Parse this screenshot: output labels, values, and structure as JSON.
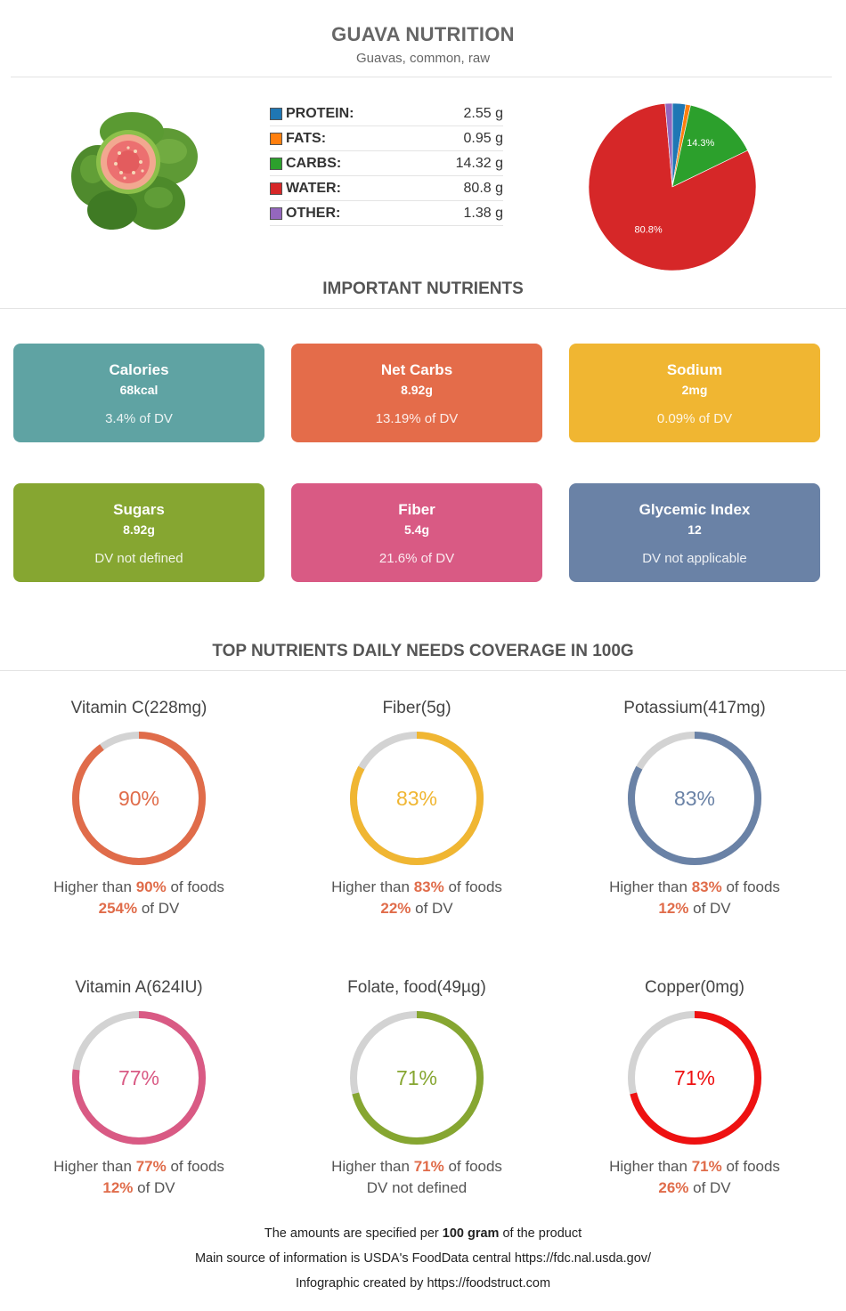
{
  "header": {
    "title": "GUAVA NUTRITION",
    "subtitle": "Guavas, common, raw"
  },
  "macros": [
    {
      "label": "PROTEIN:",
      "value": "2.55 g",
      "color": "#1f77b4"
    },
    {
      "label": "FATS:",
      "value": "0.95 g",
      "color": "#ff7f0e"
    },
    {
      "label": "CARBS:",
      "value": "14.32 g",
      "color": "#2ca02c"
    },
    {
      "label": "WATER:",
      "value": "80.8 g",
      "color": "#d62728"
    },
    {
      "label": "OTHER:",
      "value": "1.38 g",
      "color": "#9467bd"
    }
  ],
  "chart_data": {
    "type": "pie",
    "categories": [
      "PROTEIN",
      "FATS",
      "CARBS",
      "WATER",
      "OTHER"
    ],
    "values": [
      2.55,
      0.95,
      14.32,
      80.8,
      1.38
    ],
    "colors": [
      "#1f77b4",
      "#ff7f0e",
      "#2ca02c",
      "#d62728",
      "#9467bd"
    ],
    "data_labels": [
      "",
      "",
      "14.3%",
      "80.8%",
      ""
    ]
  },
  "sections": {
    "important": "IMPORTANT NUTRIENTS",
    "coverage": "TOP NUTRIENTS DAILY NEEDS COVERAGE IN 100G"
  },
  "cards": [
    {
      "name": "Calories",
      "amount": "68kcal",
      "dv": "3.4% of DV",
      "color": "#5fa3a3"
    },
    {
      "name": "Net Carbs",
      "amount": "8.92g",
      "dv": "13.19% of DV",
      "color": "#e46c4a"
    },
    {
      "name": "Sodium",
      "amount": "2mg",
      "dv": "0.09% of DV",
      "color": "#f0b632"
    },
    {
      "name": "Sugars",
      "amount": "8.92g",
      "dv": "DV not defined",
      "color": "#86a631"
    },
    {
      "name": "Fiber",
      "amount": "5.4g",
      "dv": "21.6% of DV",
      "color": "#d95a84"
    },
    {
      "name": "Glycemic Index",
      "amount": "12",
      "dv": "DV not applicable",
      "color": "#6a82a6"
    }
  ],
  "gauges": [
    {
      "name": "Vitamin C(228mg)",
      "percent": "90%",
      "fraction": 0.9,
      "color": "#e06c4a",
      "higher_prefix": "Higher than ",
      "higher_value": "90%",
      "higher_suffix": " of foods",
      "dv_value": "254%",
      "dv_suffix": " of DV",
      "dv_text": ""
    },
    {
      "name": "Fiber(5g)",
      "percent": "83%",
      "fraction": 0.83,
      "color": "#f0b632",
      "higher_prefix": "Higher than ",
      "higher_value": "83%",
      "higher_suffix": " of foods",
      "dv_value": "22%",
      "dv_suffix": " of DV",
      "dv_text": ""
    },
    {
      "name": "Potassium(417mg)",
      "percent": "83%",
      "fraction": 0.83,
      "color": "#6a82a6",
      "higher_prefix": "Higher than ",
      "higher_value": "83%",
      "higher_suffix": " of foods",
      "dv_value": "12%",
      "dv_suffix": " of DV",
      "dv_text": ""
    },
    {
      "name": "Vitamin A(624IU)",
      "percent": "77%",
      "fraction": 0.77,
      "color": "#d95a84",
      "higher_prefix": "Higher than ",
      "higher_value": "77%",
      "higher_suffix": " of foods",
      "dv_value": "12%",
      "dv_suffix": " of DV",
      "dv_text": ""
    },
    {
      "name": "Folate, food(49µg)",
      "percent": "71%",
      "fraction": 0.71,
      "color": "#86a631",
      "higher_prefix": "Higher than ",
      "higher_value": "71%",
      "higher_suffix": " of foods",
      "dv_value": "",
      "dv_suffix": "",
      "dv_text": "DV not defined"
    },
    {
      "name": "Copper(0mg)",
      "percent": "71%",
      "fraction": 0.71,
      "color": "#ee1111",
      "higher_prefix": "Higher than ",
      "higher_value": "71%",
      "higher_suffix": " of foods",
      "dv_value": "26%",
      "dv_suffix": " of DV",
      "dv_text": ""
    }
  ],
  "footer": {
    "line1_prefix": "The amounts are specified per ",
    "line1_bold": "100 gram",
    "line1_suffix": " of the product",
    "line2": "Main source of information is USDA's FoodData central https://fdc.nal.usda.gov/",
    "line3": "Infographic created by https://foodstruct.com"
  },
  "ring_track_color": "#d3d3d3"
}
